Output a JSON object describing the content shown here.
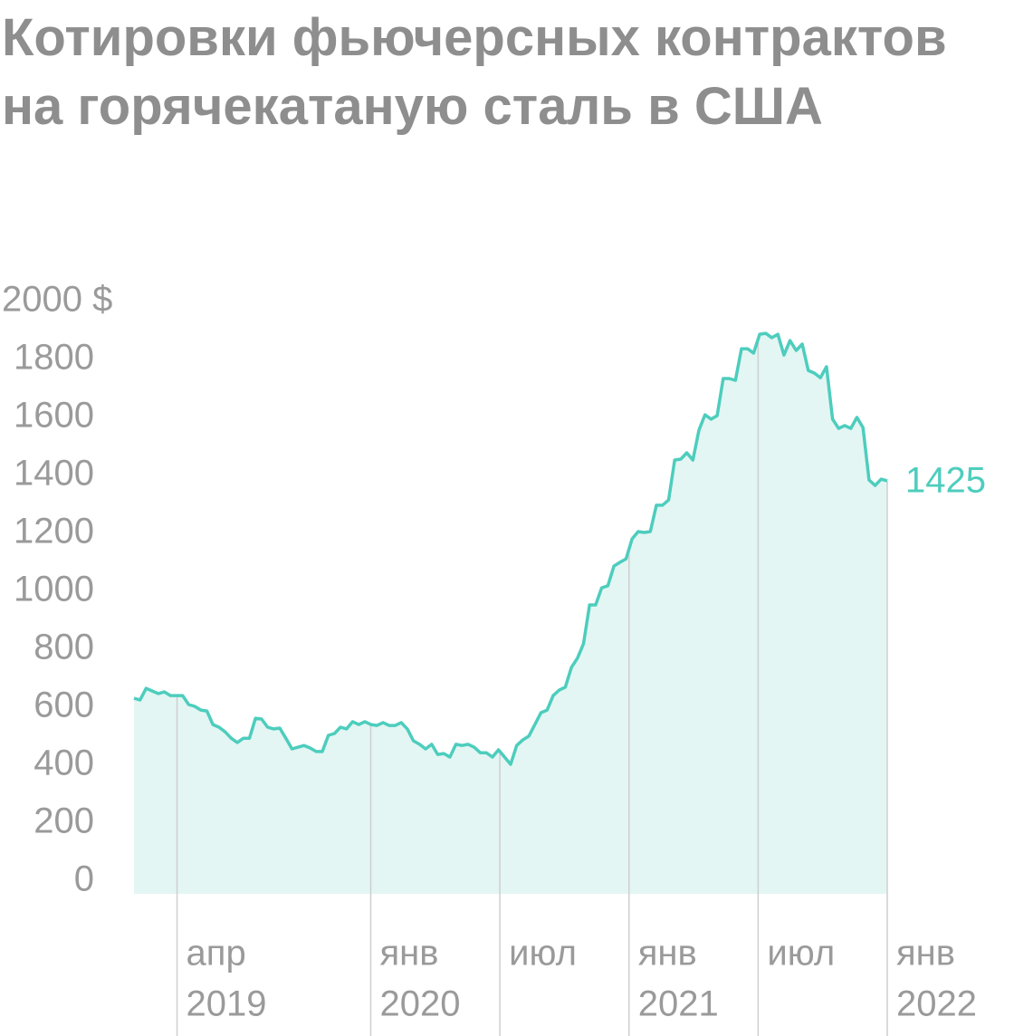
{
  "chart_data": {
    "type": "area",
    "title": "Котировки фьючерсных контрактов на горячекатаную сталь в США",
    "xlim": [
      "2019-02",
      "2022-01"
    ],
    "xticks": [
      {
        "value": "2019-04",
        "label": [
          "апр",
          "2019"
        ]
      },
      {
        "value": "2020-01",
        "label": [
          "янв",
          "2020"
        ]
      },
      {
        "value": "2020-07",
        "label": [
          "июл"
        ]
      },
      {
        "value": "2021-01",
        "label": [
          "янв",
          "2021"
        ]
      },
      {
        "value": "2021-07",
        "label": [
          "июл"
        ]
      },
      {
        "value": "2022-01",
        "label": [
          "янв",
          "2022"
        ]
      }
    ],
    "ylim": [
      0,
      2000
    ],
    "yticks": [
      0,
      200,
      400,
      600,
      800,
      1000,
      1200,
      1400,
      1600,
      1800,
      {
        "value": 2000,
        "label": "2000 $"
      }
    ],
    "series": [
      {
        "color": "#4dcdbd",
        "fill": "#e3f6f3",
        "values": [
          675,
          669,
          709,
          700,
          691,
          697,
          684,
          684,
          684,
          653,
          647,
          634,
          631,
          584,
          575,
          559,
          537,
          522,
          537,
          537,
          606,
          603,
          575,
          569,
          572,
          537,
          500,
          506,
          512,
          503,
          491,
          491,
          547,
          553,
          575,
          569,
          594,
          584,
          594,
          584,
          581,
          591,
          581,
          581,
          591,
          569,
          528,
          516,
          500,
          516,
          481,
          484,
          472,
          516,
          512,
          516,
          506,
          487,
          487,
          472,
          497,
          472,
          447,
          512,
          531,
          544,
          584,
          625,
          634,
          684,
          703,
          713,
          781,
          813,
          863,
          997,
          997,
          1056,
          1063,
          1131,
          1144,
          1156,
          1225,
          1250,
          1247,
          1250,
          1341,
          1341,
          1359,
          1497,
          1500,
          1522,
          1497,
          1600,
          1653,
          1638,
          1650,
          1778,
          1778,
          1772,
          1881,
          1881,
          1866,
          1931,
          1934,
          1919,
          1931,
          1859,
          1909,
          1875,
          1897,
          1806,
          1797,
          1781,
          1819,
          1638,
          1606,
          1616,
          1606,
          1644,
          1609,
          1428,
          1409,
          1431,
          1425
        ]
      }
    ]
  }
}
